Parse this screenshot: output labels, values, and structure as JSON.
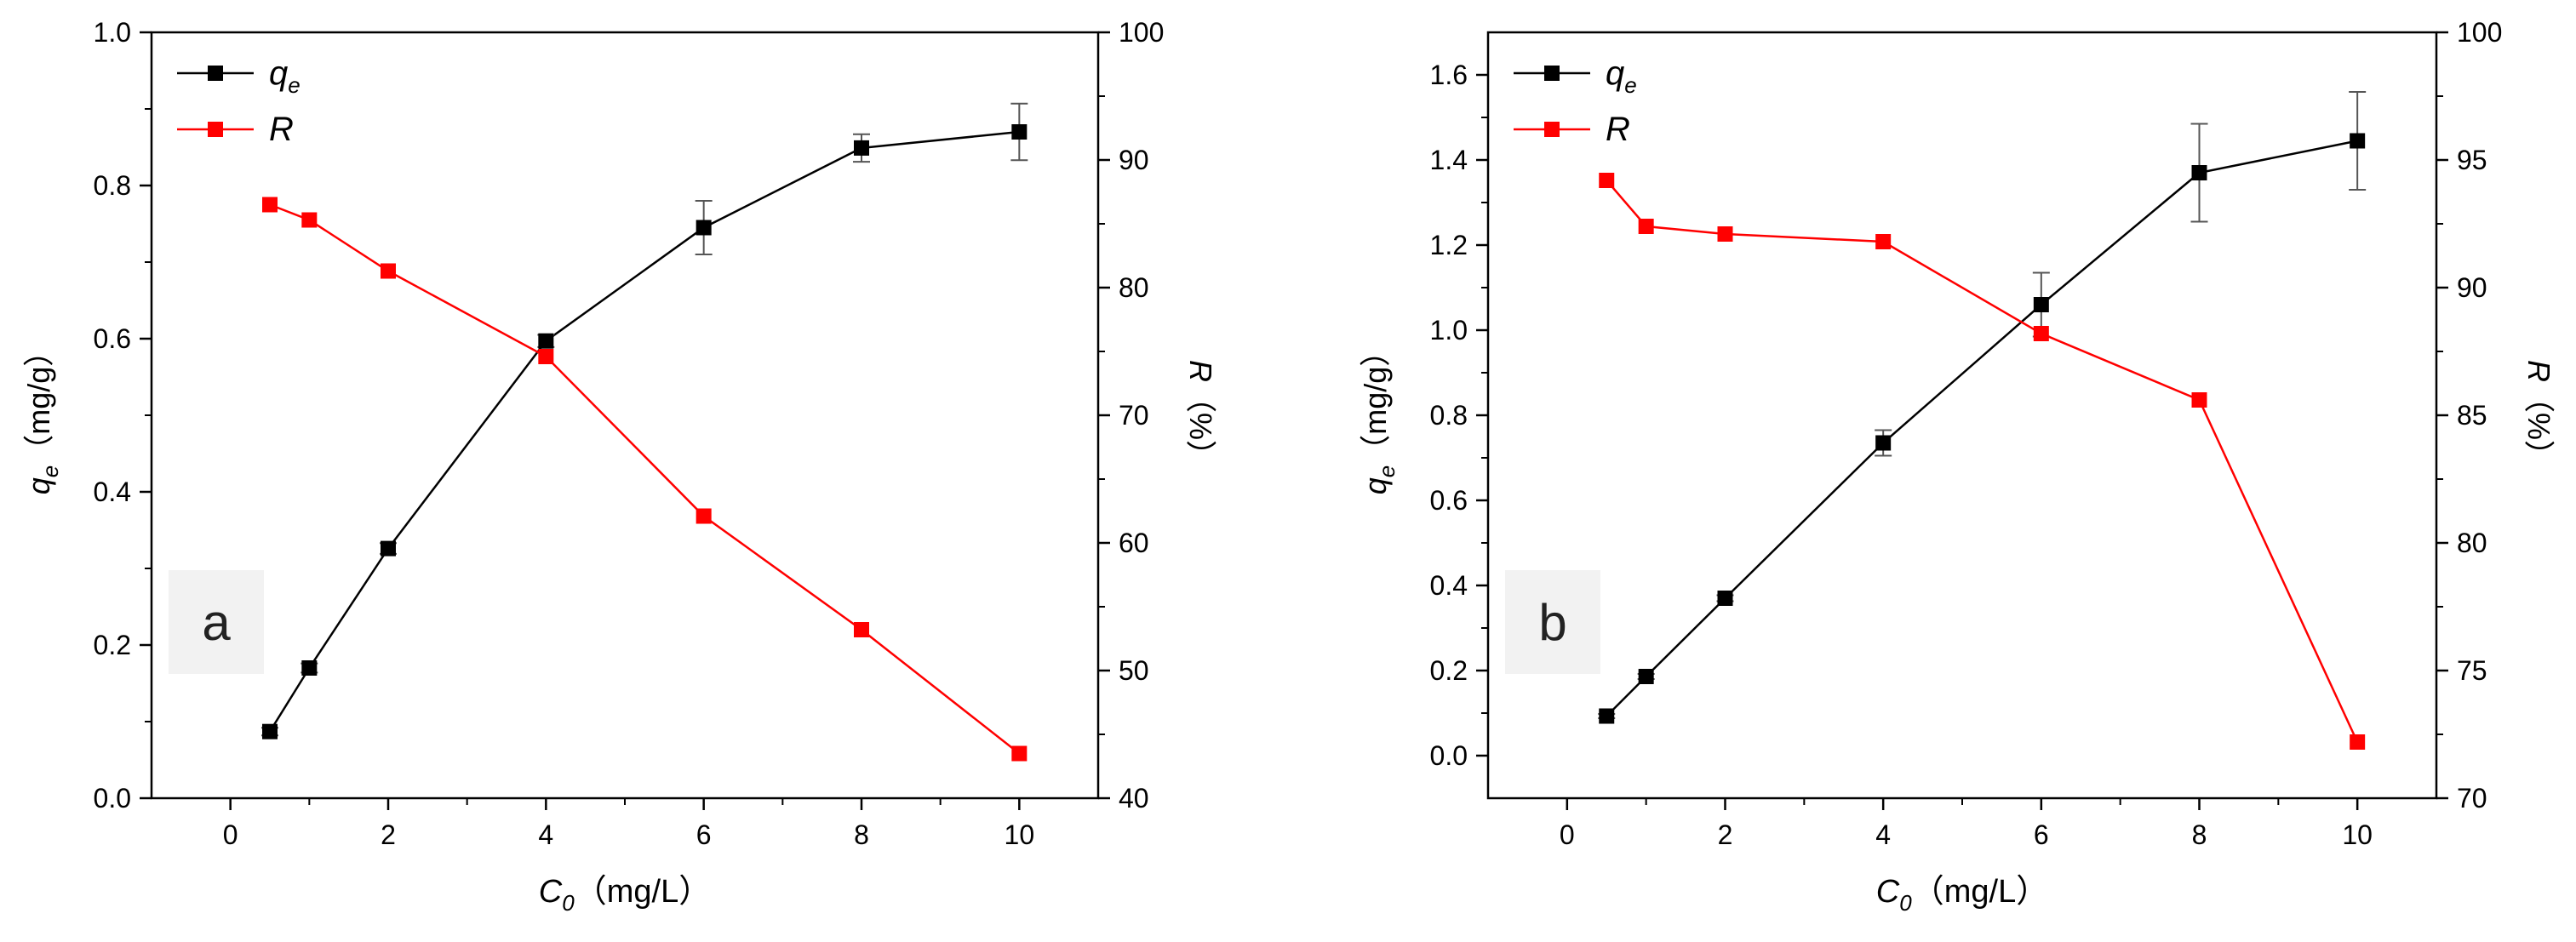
{
  "chart_data": [
    {
      "type": "line",
      "panel_label": "a",
      "x": [
        0.5,
        1,
        2,
        4,
        6,
        8,
        10
      ],
      "xlabel": {
        "sym": "C",
        "sub": "0",
        "unit": "（mg/L）"
      },
      "xlim": [
        -1,
        11
      ],
      "xticks": [
        0,
        2,
        4,
        6,
        8,
        10
      ],
      "xtick_labels": [
        "0",
        "2",
        "4",
        "6",
        "8",
        "10"
      ],
      "ylabel_left": {
        "sym": "q",
        "sub": "e",
        "unit": "（mg/g）"
      },
      "ylim_left": [
        0,
        1.0
      ],
      "yticks_left": [
        0,
        0.2,
        0.4,
        0.6,
        0.8,
        1.0
      ],
      "ytick_labels_left": [
        "0.0",
        "0.2",
        "0.4",
        "0.6",
        "0.8",
        "1.0"
      ],
      "ylabel_right": {
        "sym": "R",
        "unit": "（%）"
      },
      "ylim_right": [
        40,
        100
      ],
      "yticks_right": [
        40,
        50,
        60,
        70,
        80,
        90,
        100
      ],
      "ytick_labels_right": [
        "40",
        "50",
        "60",
        "70",
        "80",
        "90",
        "100"
      ],
      "series": [
        {
          "name": "qe",
          "label_sym": "q",
          "label_sub": "e",
          "axis": "left",
          "color": "#000000",
          "values": [
            0.087,
            0.17,
            0.326,
            0.597,
            0.745,
            0.849,
            0.87
          ],
          "errors": [
            0.005,
            0.006,
            0.007,
            0.008,
            0.035,
            0.018,
            0.037
          ]
        },
        {
          "name": "R",
          "label_sym": "R",
          "label_sub": "",
          "axis": "right",
          "color": "#ff0000",
          "values": [
            86.5,
            85.3,
            81.3,
            74.6,
            62.1,
            53.2,
            43.5
          ],
          "errors": []
        }
      ]
    },
    {
      "type": "line",
      "panel_label": "b",
      "x": [
        0.5,
        1,
        2,
        4,
        6,
        8,
        10
      ],
      "xlabel": {
        "sym": "C",
        "sub": "0",
        "unit": "（mg/L）"
      },
      "xlim": [
        -1,
        11
      ],
      "xticks": [
        0,
        2,
        4,
        6,
        8,
        10
      ],
      "xtick_labels": [
        "0",
        "2",
        "4",
        "6",
        "8",
        "10"
      ],
      "ylabel_left": {
        "sym": "q",
        "sub": "e",
        "unit": "（mg/g）"
      },
      "ylim_left": [
        -0.1,
        1.7
      ],
      "yticks_left": [
        0,
        0.2,
        0.4,
        0.6,
        0.8,
        1.0,
        1.2,
        1.4,
        1.6
      ],
      "ytick_labels_left": [
        "0.0",
        "0.2",
        "0.4",
        "0.6",
        "0.8",
        "1.0",
        "1.2",
        "1.4",
        "1.6"
      ],
      "ylabel_right": {
        "sym": "R",
        "unit": "（%）"
      },
      "ylim_right": [
        70,
        100
      ],
      "yticks_right": [
        70,
        75,
        80,
        85,
        90,
        95,
        100
      ],
      "ytick_labels_right": [
        "70",
        "75",
        "80",
        "85",
        "90",
        "95",
        "100"
      ],
      "series": [
        {
          "name": "qe",
          "label_sym": "q",
          "label_sub": "e",
          "axis": "left",
          "color": "#000000",
          "values": [
            0.093,
            0.186,
            0.37,
            0.735,
            1.06,
            1.37,
            1.445
          ],
          "errors": [
            0.005,
            0.006,
            0.007,
            0.03,
            0.075,
            0.115,
            0.115
          ]
        },
        {
          "name": "R",
          "label_sym": "R",
          "label_sub": "",
          "axis": "right",
          "color": "#ff0000",
          "values": [
            94.2,
            92.4,
            92.1,
            91.8,
            88.2,
            85.6,
            72.2
          ],
          "errors": []
        }
      ]
    }
  ]
}
